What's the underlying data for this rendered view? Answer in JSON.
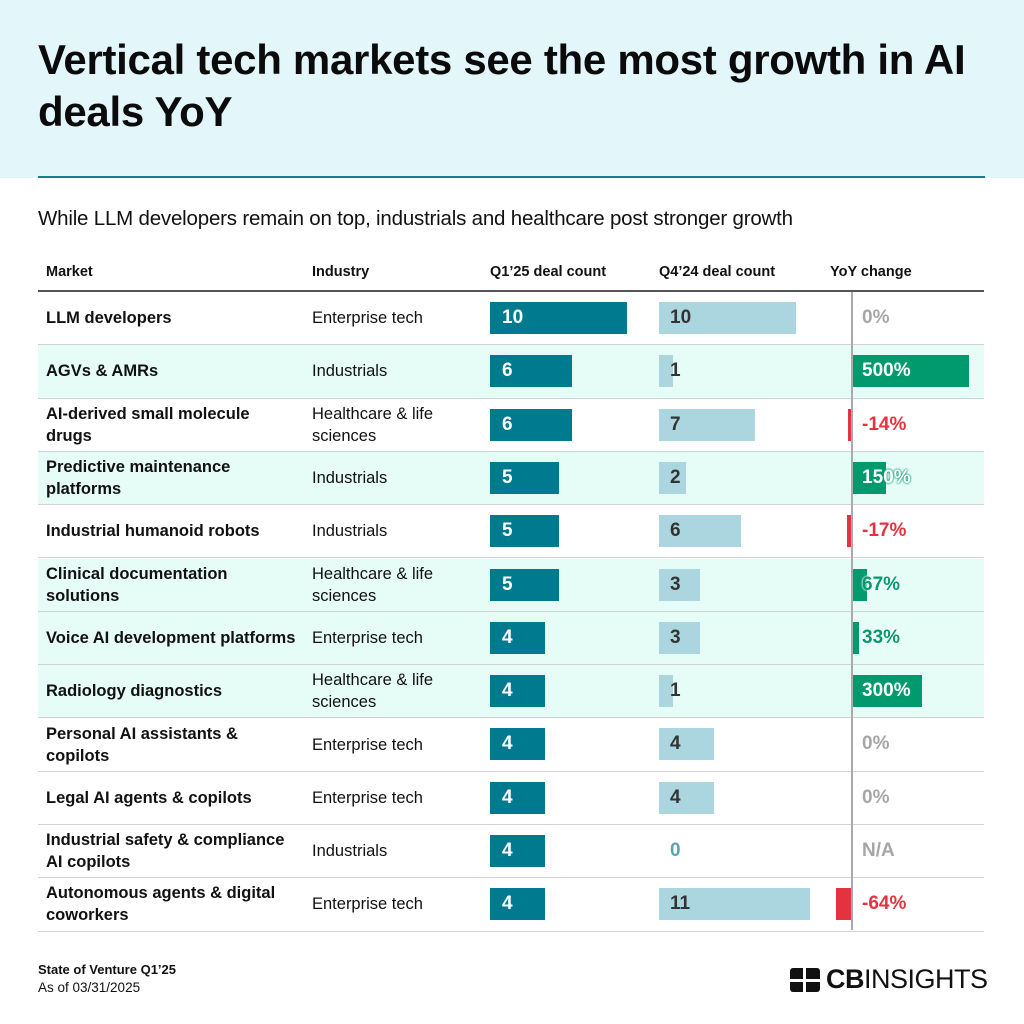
{
  "title": "Vertical tech markets see the most growth in AI deals YoY",
  "subtitle": "While LLM developers remain on top, industrials and healthcare post stronger growth",
  "headers": [
    "Market",
    "Industry",
    "Q1’25 deal count",
    "Q4’24 deal count",
    "YoY change"
  ],
  "footer": {
    "source": "State of Venture Q1’25",
    "as_of": "As of 03/31/2025",
    "logo": "CBINSIGHTS"
  },
  "colors": {
    "q1": "#007a8e",
    "q4": "#acd6df",
    "positive": "#009a6e",
    "negative": "#e5323f",
    "neutral": "#a6a6a6",
    "highlight": "#e6fcf6"
  },
  "chart_data": {
    "type": "table",
    "columns": [
      "Market",
      "Industry",
      "Q1’25 deal count",
      "Q4’24 deal count",
      "YoY change"
    ],
    "rows": [
      {
        "market": "LLM developers",
        "industry": "Enterprise tech",
        "q1": 10,
        "q4": 10,
        "yoy": 0,
        "yoy_label": "0%"
      },
      {
        "market": "AGVs & AMRs",
        "industry": "Industrials",
        "q1": 6,
        "q4": 1,
        "yoy": 500,
        "yoy_label": "500%"
      },
      {
        "market": "AI-derived small molecule drugs",
        "industry": "Healthcare & life sciences",
        "q1": 6,
        "q4": 7,
        "yoy": -14,
        "yoy_label": "-14%"
      },
      {
        "market": "Predictive maintenance platforms",
        "industry": "Industrials",
        "q1": 5,
        "q4": 2,
        "yoy": 150,
        "yoy_label": "150%"
      },
      {
        "market": "Industrial humanoid robots",
        "industry": "Industrials",
        "q1": 5,
        "q4": 6,
        "yoy": -17,
        "yoy_label": "-17%"
      },
      {
        "market": "Clinical documentation solutions",
        "industry": "Healthcare & life sciences",
        "q1": 5,
        "q4": 3,
        "yoy": 67,
        "yoy_label": "67%"
      },
      {
        "market": "Voice AI development platforms",
        "industry": "Enterprise tech",
        "q1": 4,
        "q4": 3,
        "yoy": 33,
        "yoy_label": "33%"
      },
      {
        "market": "Radiology diagnostics",
        "industry": "Healthcare & life sciences",
        "q1": 4,
        "q4": 1,
        "yoy": 300,
        "yoy_label": "300%"
      },
      {
        "market": "Personal AI assistants & copilots",
        "industry": "Enterprise tech",
        "q1": 4,
        "q4": 4,
        "yoy": 0,
        "yoy_label": "0%"
      },
      {
        "market": "Legal AI agents & copilots",
        "industry": "Enterprise tech",
        "q1": 4,
        "q4": 4,
        "yoy": 0,
        "yoy_label": "0%"
      },
      {
        "market": "Industrial safety & compliance AI copilots",
        "industry": "Industrials",
        "q1": 4,
        "q4": 0,
        "yoy": null,
        "yoy_label": "N/A"
      },
      {
        "market": "Autonomous agents & digital coworkers",
        "industry": "Enterprise tech",
        "q1": 4,
        "q4": 11,
        "yoy": -64,
        "yoy_label": "-64%"
      }
    ]
  }
}
